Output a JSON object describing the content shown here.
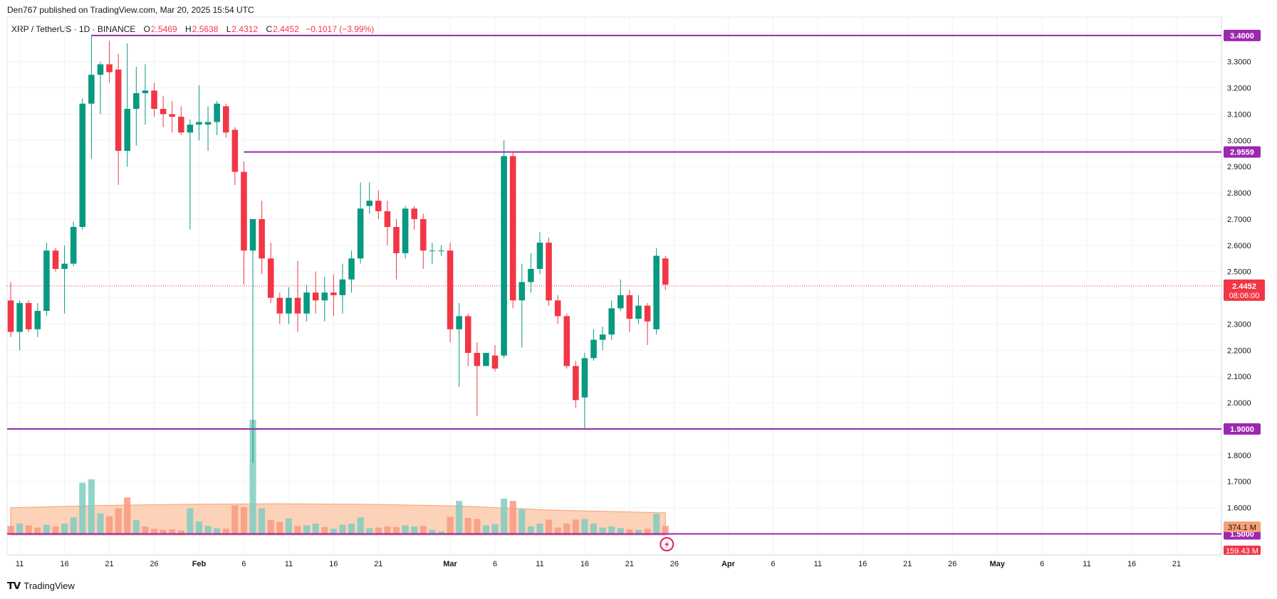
{
  "header": {
    "published": "Den767 published on TradingView.com, Mar 20, 2025 15:54 UTC"
  },
  "legend": {
    "symbol": "XRP / TetherUS · 1D · BINANCE",
    "o_label": "O",
    "o_value": "2.5469",
    "h_label": "H",
    "h_value": "2.5638",
    "l_label": "L",
    "l_value": "2.4312",
    "c_label": "C",
    "c_value": "2.4452",
    "change": "−0.1017 (−3.99%)"
  },
  "footer": {
    "brand": "TradingView"
  },
  "colors": {
    "up": "#089981",
    "down": "#f23645",
    "level": "#9c27b0",
    "vol_up": "#7fcdc2",
    "vol_down": "#f79a7f",
    "vol_ma_fill": "#fbc7a8",
    "grid": "#f0f3fa"
  },
  "chart_data": {
    "type": "candlestick",
    "symbol": "XRP / TetherUS",
    "interval": "1D",
    "exchange": "BINANCE",
    "y_axis": {
      "ticks": [
        "1.6000",
        "1.7000",
        "1.8000",
        "1.9000",
        "2.0000",
        "2.1000",
        "2.2000",
        "2.3000",
        "2.4000",
        "2.5000",
        "2.6000",
        "2.7000",
        "2.8000",
        "2.9000",
        "3.0000",
        "3.1000",
        "3.2000",
        "3.3000"
      ],
      "range": [
        1.42,
        3.47
      ]
    },
    "x_axis": {
      "labels": [
        {
          "text": "11",
          "day": 11
        },
        {
          "text": "16",
          "day": 16
        },
        {
          "text": "21",
          "day": 21
        },
        {
          "text": "26",
          "day": 26
        },
        {
          "text": "Feb",
          "day": 31
        },
        {
          "text": "6",
          "day": 36
        },
        {
          "text": "11",
          "day": 41
        },
        {
          "text": "16",
          "day": 46
        },
        {
          "text": "21",
          "day": 51
        },
        {
          "text": "Mar",
          "day": 59
        },
        {
          "text": "6",
          "day": 64
        },
        {
          "text": "11",
          "day": 69
        },
        {
          "text": "16",
          "day": 74
        },
        {
          "text": "21",
          "day": 79
        },
        {
          "text": "26",
          "day": 84
        },
        {
          "text": "Apr",
          "day": 90
        },
        {
          "text": "6",
          "day": 95
        },
        {
          "text": "11",
          "day": 100
        },
        {
          "text": "16",
          "day": 105
        },
        {
          "text": "21",
          "day": 110
        },
        {
          "text": "26",
          "day": 115
        },
        {
          "text": "May",
          "day": 120
        },
        {
          "text": "6",
          "day": 125
        },
        {
          "text": "11",
          "day": 130
        },
        {
          "text": "16",
          "day": 135
        },
        {
          "text": "21",
          "day": 140
        }
      ],
      "day_range": [
        9.6,
        145.0
      ]
    },
    "candles": [
      {
        "day": 10,
        "o": 2.39,
        "h": 2.46,
        "l": 2.25,
        "c": 2.27
      },
      {
        "day": 11,
        "o": 2.27,
        "h": 2.39,
        "l": 2.2,
        "c": 2.38
      },
      {
        "day": 12,
        "o": 2.38,
        "h": 2.39,
        "l": 2.27,
        "c": 2.28
      },
      {
        "day": 13,
        "o": 2.28,
        "h": 2.38,
        "l": 2.25,
        "c": 2.35
      },
      {
        "day": 14,
        "o": 2.35,
        "h": 2.61,
        "l": 2.33,
        "c": 2.58
      },
      {
        "day": 15,
        "o": 2.58,
        "h": 2.59,
        "l": 2.5,
        "c": 2.51
      },
      {
        "day": 16,
        "o": 2.51,
        "h": 2.6,
        "l": 2.34,
        "c": 2.53
      },
      {
        "day": 17,
        "o": 2.53,
        "h": 2.69,
        "l": 2.52,
        "c": 2.67
      },
      {
        "day": 18,
        "o": 2.67,
        "h": 3.16,
        "l": 2.66,
        "c": 3.14
      },
      {
        "day": 19,
        "o": 3.14,
        "h": 3.4,
        "l": 2.93,
        "c": 3.25
      },
      {
        "day": 20,
        "o": 3.25,
        "h": 3.3,
        "l": 3.1,
        "c": 3.29
      },
      {
        "day": 21,
        "o": 3.29,
        "h": 3.38,
        "l": 3.22,
        "c": 3.26
      },
      {
        "day": 22,
        "o": 3.27,
        "h": 3.33,
        "l": 2.83,
        "c": 2.96
      },
      {
        "day": 23,
        "o": 2.96,
        "h": 3.37,
        "l": 2.9,
        "c": 3.12
      },
      {
        "day": 24,
        "o": 3.12,
        "h": 3.28,
        "l": 2.98,
        "c": 3.18
      },
      {
        "day": 25,
        "o": 3.18,
        "h": 3.29,
        "l": 3.06,
        "c": 3.19
      },
      {
        "day": 26,
        "o": 3.19,
        "h": 3.22,
        "l": 3.09,
        "c": 3.12
      },
      {
        "day": 27,
        "o": 3.12,
        "h": 3.17,
        "l": 3.05,
        "c": 3.1
      },
      {
        "day": 28,
        "o": 3.1,
        "h": 3.15,
        "l": 3.03,
        "c": 3.09
      },
      {
        "day": 29,
        "o": 3.09,
        "h": 3.13,
        "l": 3.02,
        "c": 3.03
      },
      {
        "day": 30,
        "o": 3.03,
        "h": 3.08,
        "l": 2.66,
        "c": 3.06
      },
      {
        "day": 31,
        "o": 3.06,
        "h": 3.21,
        "l": 3.0,
        "c": 3.07
      },
      {
        "day": 32,
        "o": 3.06,
        "h": 3.13,
        "l": 2.96,
        "c": 3.07
      },
      {
        "day": 33,
        "o": 3.07,
        "h": 3.15,
        "l": 3.02,
        "c": 3.14
      },
      {
        "day": 34,
        "o": 3.13,
        "h": 3.14,
        "l": 3.01,
        "c": 3.03
      },
      {
        "day": 35,
        "o": 3.04,
        "h": 3.05,
        "l": 2.83,
        "c": 2.88
      },
      {
        "day": 36,
        "o": 2.88,
        "h": 2.92,
        "l": 2.45,
        "c": 2.58
      },
      {
        "day": 37,
        "o": 2.58,
        "h": 2.7,
        "l": 1.77,
        "c": 2.7
      },
      {
        "day": 38,
        "o": 2.7,
        "h": 2.77,
        "l": 2.49,
        "c": 2.55
      },
      {
        "day": 39,
        "o": 2.55,
        "h": 2.61,
        "l": 2.38,
        "c": 2.4
      },
      {
        "day": 40,
        "o": 2.4,
        "h": 2.42,
        "l": 2.3,
        "c": 2.34
      },
      {
        "day": 41,
        "o": 2.34,
        "h": 2.44,
        "l": 2.3,
        "c": 2.4
      },
      {
        "day": 42,
        "o": 2.4,
        "h": 2.54,
        "l": 2.27,
        "c": 2.34
      },
      {
        "day": 43,
        "o": 2.34,
        "h": 2.45,
        "l": 2.31,
        "c": 2.42
      },
      {
        "day": 44,
        "o": 2.42,
        "h": 2.5,
        "l": 2.34,
        "c": 2.39
      },
      {
        "day": 45,
        "o": 2.39,
        "h": 2.48,
        "l": 2.31,
        "c": 2.42
      },
      {
        "day": 46,
        "o": 2.42,
        "h": 2.49,
        "l": 2.33,
        "c": 2.41
      },
      {
        "day": 47,
        "o": 2.41,
        "h": 2.53,
        "l": 2.34,
        "c": 2.47
      },
      {
        "day": 48,
        "o": 2.47,
        "h": 2.58,
        "l": 2.42,
        "c": 2.55
      },
      {
        "day": 49,
        "o": 2.55,
        "h": 2.84,
        "l": 2.53,
        "c": 2.74
      },
      {
        "day": 50,
        "o": 2.75,
        "h": 2.84,
        "l": 2.72,
        "c": 2.77
      },
      {
        "day": 51,
        "o": 2.77,
        "h": 2.81,
        "l": 2.7,
        "c": 2.73
      },
      {
        "day": 52,
        "o": 2.73,
        "h": 2.77,
        "l": 2.6,
        "c": 2.67
      },
      {
        "day": 53,
        "o": 2.67,
        "h": 2.7,
        "l": 2.47,
        "c": 2.57
      },
      {
        "day": 54,
        "o": 2.57,
        "h": 2.75,
        "l": 2.55,
        "c": 2.74
      },
      {
        "day": 55,
        "o": 2.74,
        "h": 2.75,
        "l": 2.66,
        "c": 2.7
      },
      {
        "day": 56,
        "o": 2.7,
        "h": 2.72,
        "l": 2.51,
        "c": 2.58
      },
      {
        "day": 57,
        "o": 2.58,
        "h": 2.61,
        "l": 2.53,
        "c": 2.58
      },
      {
        "day": 58,
        "o": 2.58,
        "h": 2.6,
        "l": 2.56,
        "c": 2.58
      },
      {
        "day": 59,
        "o": 2.58,
        "h": 2.61,
        "l": 2.23,
        "c": 2.28
      },
      {
        "day": 60,
        "o": 2.28,
        "h": 2.38,
        "l": 2.06,
        "c": 2.33
      },
      {
        "day": 61,
        "o": 2.33,
        "h": 2.34,
        "l": 2.14,
        "c": 2.19
      },
      {
        "day": 62,
        "o": 2.19,
        "h": 2.23,
        "l": 1.95,
        "c": 2.14
      },
      {
        "day": 63,
        "o": 2.14,
        "h": 2.19,
        "l": 2.14,
        "c": 2.19
      },
      {
        "day": 64,
        "o": 2.18,
        "h": 2.22,
        "l": 2.12,
        "c": 2.13
      },
      {
        "day": 65,
        "o": 2.18,
        "h": 3.0,
        "l": 2.17,
        "c": 2.94
      },
      {
        "day": 66,
        "o": 2.94,
        "h": 2.96,
        "l": 2.36,
        "c": 2.39
      },
      {
        "day": 67,
        "o": 2.39,
        "h": 2.53,
        "l": 2.21,
        "c": 2.46
      },
      {
        "day": 68,
        "o": 2.46,
        "h": 2.57,
        "l": 2.42,
        "c": 2.51
      },
      {
        "day": 69,
        "o": 2.51,
        "h": 2.65,
        "l": 2.49,
        "c": 2.61
      },
      {
        "day": 70,
        "o": 2.61,
        "h": 2.63,
        "l": 2.37,
        "c": 2.39
      },
      {
        "day": 71,
        "o": 2.39,
        "h": 2.41,
        "l": 2.3,
        "c": 2.33
      },
      {
        "day": 72,
        "o": 2.33,
        "h": 2.34,
        "l": 2.13,
        "c": 2.14
      },
      {
        "day": 73,
        "o": 2.14,
        "h": 2.16,
        "l": 1.98,
        "c": 2.01
      },
      {
        "day": 74,
        "o": 2.02,
        "h": 2.19,
        "l": 1.9,
        "c": 2.17
      },
      {
        "day": 75,
        "o": 2.17,
        "h": 2.28,
        "l": 2.16,
        "c": 2.24
      },
      {
        "day": 76,
        "o": 2.24,
        "h": 2.29,
        "l": 2.2,
        "c": 2.26
      },
      {
        "day": 77,
        "o": 2.26,
        "h": 2.39,
        "l": 2.24,
        "c": 2.36
      },
      {
        "day": 78,
        "o": 2.36,
        "h": 2.47,
        "l": 2.35,
        "c": 2.41
      },
      {
        "day": 79,
        "o": 2.41,
        "h": 2.43,
        "l": 2.27,
        "c": 2.32
      },
      {
        "day": 80,
        "o": 2.32,
        "h": 2.41,
        "l": 2.3,
        "c": 2.37
      },
      {
        "day": 81,
        "o": 2.37,
        "h": 2.38,
        "l": 2.22,
        "c": 2.31
      },
      {
        "day": 82,
        "o": 2.28,
        "h": 2.59,
        "l": 2.26,
        "c": 2.56
      },
      {
        "day": 83,
        "o": 2.55,
        "h": 2.56,
        "l": 2.43,
        "c": 2.45
      }
    ],
    "volume": {
      "unit": "M",
      "values": [
        {
          "day": 10,
          "v": 160,
          "dir": "down"
        },
        {
          "day": 11,
          "v": 200,
          "dir": "up"
        },
        {
          "day": 12,
          "v": 170,
          "dir": "down"
        },
        {
          "day": 13,
          "v": 130,
          "dir": "down"
        },
        {
          "day": 14,
          "v": 180,
          "dir": "up"
        },
        {
          "day": 15,
          "v": 150,
          "dir": "down"
        },
        {
          "day": 16,
          "v": 200,
          "dir": "up"
        },
        {
          "day": 17,
          "v": 310,
          "dir": "up"
        },
        {
          "day": 18,
          "v": 920,
          "dir": "up"
        },
        {
          "day": 19,
          "v": 980,
          "dir": "up"
        },
        {
          "day": 20,
          "v": 380,
          "dir": "up"
        },
        {
          "day": 21,
          "v": 330,
          "dir": "down"
        },
        {
          "day": 22,
          "v": 470,
          "dir": "down"
        },
        {
          "day": 23,
          "v": 660,
          "dir": "down"
        },
        {
          "day": 24,
          "v": 260,
          "dir": "up"
        },
        {
          "day": 25,
          "v": 150,
          "dir": "down"
        },
        {
          "day": 26,
          "v": 110,
          "dir": "down"
        },
        {
          "day": 27,
          "v": 90,
          "dir": "down"
        },
        {
          "day": 28,
          "v": 100,
          "dir": "down"
        },
        {
          "day": 29,
          "v": 80,
          "dir": "down"
        },
        {
          "day": 30,
          "v": 470,
          "dir": "up"
        },
        {
          "day": 31,
          "v": 240,
          "dir": "up"
        },
        {
          "day": 32,
          "v": 160,
          "dir": "up"
        },
        {
          "day": 33,
          "v": 120,
          "dir": "up"
        },
        {
          "day": 34,
          "v": 110,
          "dir": "down"
        },
        {
          "day": 35,
          "v": 520,
          "dir": "down"
        },
        {
          "day": 36,
          "v": 490,
          "dir": "down"
        },
        {
          "day": 37,
          "v": 2030,
          "dir": "up"
        },
        {
          "day": 38,
          "v": 470,
          "dir": "up"
        },
        {
          "day": 39,
          "v": 260,
          "dir": "down"
        },
        {
          "day": 40,
          "v": 230,
          "dir": "down"
        },
        {
          "day": 41,
          "v": 290,
          "dir": "up"
        },
        {
          "day": 42,
          "v": 160,
          "dir": "down"
        },
        {
          "day": 43,
          "v": 170,
          "dir": "up"
        },
        {
          "day": 44,
          "v": 200,
          "dir": "up"
        },
        {
          "day": 45,
          "v": 140,
          "dir": "down"
        },
        {
          "day": 46,
          "v": 110,
          "dir": "up"
        },
        {
          "day": 47,
          "v": 180,
          "dir": "up"
        },
        {
          "day": 48,
          "v": 200,
          "dir": "up"
        },
        {
          "day": 49,
          "v": 310,
          "dir": "up"
        },
        {
          "day": 50,
          "v": 120,
          "dir": "up"
        },
        {
          "day": 51,
          "v": 130,
          "dir": "down"
        },
        {
          "day": 52,
          "v": 150,
          "dir": "down"
        },
        {
          "day": 53,
          "v": 140,
          "dir": "down"
        },
        {
          "day": 54,
          "v": 170,
          "dir": "up"
        },
        {
          "day": 55,
          "v": 150,
          "dir": "up"
        },
        {
          "day": 56,
          "v": 160,
          "dir": "down"
        },
        {
          "day": 57,
          "v": 90,
          "dir": "up"
        },
        {
          "day": 58,
          "v": 60,
          "dir": "up"
        },
        {
          "day": 59,
          "v": 320,
          "dir": "down"
        },
        {
          "day": 60,
          "v": 600,
          "dir": "up"
        },
        {
          "day": 61,
          "v": 300,
          "dir": "down"
        },
        {
          "day": 62,
          "v": 280,
          "dir": "down"
        },
        {
          "day": 63,
          "v": 170,
          "dir": "up"
        },
        {
          "day": 64,
          "v": 190,
          "dir": "up"
        },
        {
          "day": 65,
          "v": 640,
          "dir": "up"
        },
        {
          "day": 66,
          "v": 600,
          "dir": "down"
        },
        {
          "day": 67,
          "v": 450,
          "dir": "up"
        },
        {
          "day": 68,
          "v": 150,
          "dir": "up"
        },
        {
          "day": 69,
          "v": 200,
          "dir": "up"
        },
        {
          "day": 70,
          "v": 270,
          "dir": "down"
        },
        {
          "day": 71,
          "v": 130,
          "dir": "down"
        },
        {
          "day": 72,
          "v": 200,
          "dir": "down"
        },
        {
          "day": 73,
          "v": 270,
          "dir": "down"
        },
        {
          "day": 74,
          "v": 280,
          "dir": "up"
        },
        {
          "day": 75,
          "v": 200,
          "dir": "up"
        },
        {
          "day": 76,
          "v": 130,
          "dir": "up"
        },
        {
          "day": 77,
          "v": 150,
          "dir": "up"
        },
        {
          "day": 78,
          "v": 120,
          "dir": "up"
        },
        {
          "day": 79,
          "v": 100,
          "dir": "down"
        },
        {
          "day": 80,
          "v": 90,
          "dir": "up"
        },
        {
          "day": 81,
          "v": 110,
          "dir": "down"
        },
        {
          "day": 82,
          "v": 374.1,
          "dir": "up"
        },
        {
          "day": 83,
          "v": 159.43,
          "dir": "down"
        }
      ],
      "ma": [
        {
          "day": 10,
          "v": 480
        },
        {
          "day": 20,
          "v": 520
        },
        {
          "day": 30,
          "v": 540
        },
        {
          "day": 40,
          "v": 550
        },
        {
          "day": 50,
          "v": 540
        },
        {
          "day": 60,
          "v": 510
        },
        {
          "day": 70,
          "v": 440
        },
        {
          "day": 83,
          "v": 390
        }
      ],
      "labels": {
        "up_value": "374.1 M",
        "down_value": "159.43 M"
      }
    },
    "horizontal_levels": [
      {
        "price": 3.4,
        "label": "3.4000",
        "from_day": 19
      },
      {
        "price": 2.9559,
        "label": "2.9559",
        "from_day": 36
      },
      {
        "price": 1.9,
        "label": "1.9000",
        "from_day": 9.6
      },
      {
        "price": 1.5,
        "label": "1.5000",
        "from_day": 9.6
      }
    ],
    "last_price": {
      "price": 2.4452,
      "label": "2.4452",
      "countdown": "08:06:00"
    }
  }
}
